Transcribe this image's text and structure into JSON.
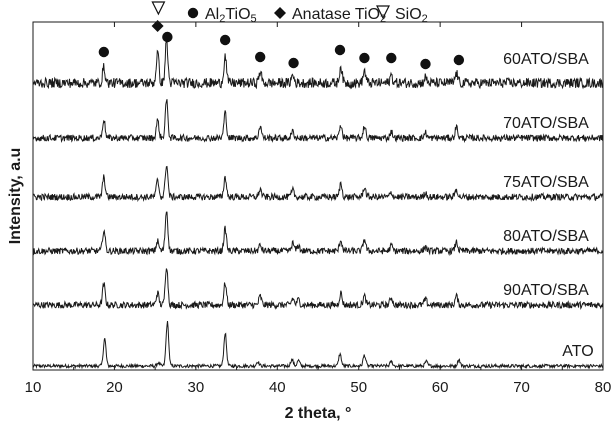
{
  "chart_data": {
    "type": "line",
    "xlabel": "2 theta, °",
    "ylabel": "Intensity, a.u",
    "xlim": [
      10,
      80
    ],
    "x_ticks": [
      10,
      20,
      30,
      40,
      50,
      60,
      70,
      80
    ],
    "y_ticks_shown": false,
    "grid": false,
    "legend": {
      "placement": "top",
      "entries": [
        {
          "marker": "circle",
          "text_parts": [
            {
              "t": "Al"
            },
            {
              "t": "2",
              "sub": true
            },
            {
              "t": "TiO"
            },
            {
              "t": "5",
              "sub": true
            }
          ]
        },
        {
          "marker": "diamond",
          "text_parts": [
            {
              "t": "Anatase TiO"
            },
            {
              "t": "2",
              "sub": true
            }
          ]
        },
        {
          "marker": "nabla",
          "text_parts": [
            {
              "t": "SiO"
            },
            {
              "t": "2",
              "sub": true
            }
          ]
        }
      ]
    },
    "series": [
      {
        "name": "ATO",
        "noise": 0.15,
        "peaks": [
          [
            18.8,
            2.5
          ],
          [
            25.4,
            0.3
          ],
          [
            26.5,
            4.0
          ],
          [
            33.6,
            3.0
          ],
          [
            37.6,
            0.4
          ],
          [
            41.8,
            0.6
          ],
          [
            42.6,
            0.5
          ],
          [
            47.7,
            1.1
          ],
          [
            50.7,
            1.0
          ],
          [
            54.0,
            0.4
          ],
          [
            58.3,
            0.4
          ],
          [
            62.3,
            0.6
          ]
        ]
      },
      {
        "name": "90ATO/SBA",
        "noise": 0.3,
        "peaks": [
          [
            18.7,
            1.9
          ],
          [
            25.3,
            1.1
          ],
          [
            26.4,
            3.6
          ],
          [
            33.6,
            2.0
          ],
          [
            37.9,
            0.8
          ],
          [
            41.9,
            0.6
          ],
          [
            42.6,
            0.5
          ],
          [
            47.8,
            1.1
          ],
          [
            50.7,
            0.8
          ],
          [
            54.0,
            0.7
          ],
          [
            58.2,
            0.5
          ],
          [
            62.0,
            0.8
          ]
        ]
      },
      {
        "name": "80ATO/SBA",
        "noise": 0.3,
        "peaks": [
          [
            18.7,
            1.9
          ],
          [
            25.3,
            0.9
          ],
          [
            26.4,
            3.7
          ],
          [
            33.6,
            2.0
          ],
          [
            37.9,
            0.5
          ],
          [
            41.9,
            0.7
          ],
          [
            42.6,
            0.5
          ],
          [
            47.8,
            1.0
          ],
          [
            50.7,
            1.1
          ],
          [
            54.0,
            0.5
          ],
          [
            58.2,
            0.4
          ],
          [
            62.0,
            0.8
          ]
        ]
      },
      {
        "name": "75ATO/SBA",
        "noise": 0.3,
        "peaks": [
          [
            18.7,
            1.8
          ],
          [
            25.3,
            1.5
          ],
          [
            26.4,
            3.0
          ],
          [
            33.6,
            1.8
          ],
          [
            37.9,
            0.7
          ],
          [
            41.9,
            0.6
          ],
          [
            47.8,
            1.2
          ],
          [
            50.7,
            0.9
          ],
          [
            54.0,
            0.4
          ],
          [
            58.2,
            0.4
          ],
          [
            62.0,
            0.7
          ]
        ]
      },
      {
        "name": "70ATO/SBA",
        "noise": 0.3,
        "peaks": [
          [
            18.7,
            1.7
          ],
          [
            25.3,
            1.6
          ],
          [
            26.4,
            3.4
          ],
          [
            33.6,
            2.3
          ],
          [
            37.9,
            1.1
          ],
          [
            41.9,
            0.6
          ],
          [
            47.8,
            1.2
          ],
          [
            50.7,
            1.1
          ],
          [
            54.0,
            0.6
          ],
          [
            58.2,
            0.5
          ],
          [
            62.0,
            1.0
          ]
        ]
      },
      {
        "name": "60ATO/SBA",
        "noise": 0.45,
        "peaks": [
          [
            18.7,
            1.4
          ],
          [
            25.3,
            2.8
          ],
          [
            26.4,
            3.8
          ],
          [
            33.6,
            2.5
          ],
          [
            37.9,
            1.0
          ],
          [
            41.9,
            0.7
          ],
          [
            47.8,
            1.5
          ],
          [
            50.7,
            1.1
          ],
          [
            54.0,
            0.7
          ],
          [
            58.2,
            0.5
          ],
          [
            62.0,
            0.9
          ]
        ]
      }
    ],
    "annotations": [
      {
        "marker": "circle",
        "series": "60ATO/SBA",
        "x": [
          18.7,
          26.5,
          33.6,
          37.9,
          42.0,
          47.7,
          50.7,
          54.0,
          58.2,
          62.3
        ]
      },
      {
        "marker": "diamond",
        "series": "60ATO/SBA",
        "x": [
          25.3
        ]
      },
      {
        "marker": "nabla",
        "series": "60ATO/SBA",
        "x": [
          25.4
        ]
      }
    ]
  }
}
